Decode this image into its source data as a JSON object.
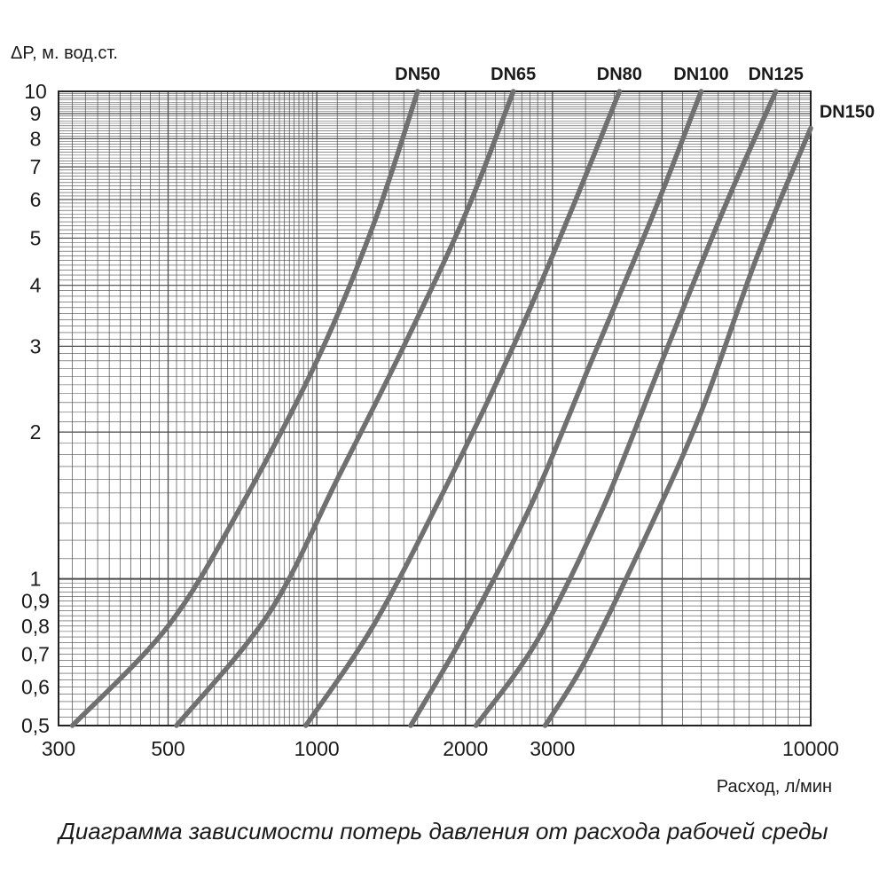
{
  "chart_data": {
    "type": "line",
    "title": "",
    "ylabel": "ΔP, м. вод.ст.",
    "xlabel": "Расход, л/мин",
    "x_scale": "log",
    "y_scale": "log",
    "xlim": [
      300,
      10000
    ],
    "ylim": [
      0.5,
      10
    ],
    "grid": true,
    "x_ticks": [
      {
        "value": 300,
        "label": "300"
      },
      {
        "value": 500,
        "label": "500"
      },
      {
        "value": 1000,
        "label": "1000"
      },
      {
        "value": 2000,
        "label": "2000"
      },
      {
        "value": 3000,
        "label": "3000"
      },
      {
        "value": 10000,
        "label": "10000"
      }
    ],
    "y_ticks": [
      {
        "value": 10,
        "label": "10"
      },
      {
        "value": 9,
        "label": "9"
      },
      {
        "value": 8,
        "label": "8"
      },
      {
        "value": 7,
        "label": "7"
      },
      {
        "value": 6,
        "label": "6"
      },
      {
        "value": 5,
        "label": "5"
      },
      {
        "value": 4,
        "label": "4"
      },
      {
        "value": 3,
        "label": "3"
      },
      {
        "value": 2,
        "label": "2"
      },
      {
        "value": 1,
        "label": "1"
      },
      {
        "value": 0.9,
        "label": "0,9"
      },
      {
        "value": 0.8,
        "label": "0,8"
      },
      {
        "value": 0.7,
        "label": "0,7"
      },
      {
        "value": 0.6,
        "label": "0,6"
      },
      {
        "value": 0.5,
        "label": "0,5"
      }
    ],
    "series": [
      {
        "name": "DN50",
        "points": [
          [
            320,
            0.5
          ],
          [
            500,
            0.8
          ],
          [
            700,
            1.4
          ],
          [
            1000,
            2.8
          ],
          [
            1300,
            5.3
          ],
          [
            1600,
            10
          ]
        ]
      },
      {
        "name": "DN65",
        "points": [
          [
            520,
            0.5
          ],
          [
            800,
            0.85
          ],
          [
            1100,
            1.6
          ],
          [
            1500,
            3.0
          ],
          [
            2000,
            5.6
          ],
          [
            2500,
            10
          ]
        ]
      },
      {
        "name": "DN80",
        "points": [
          [
            950,
            0.5
          ],
          [
            1300,
            0.8
          ],
          [
            1800,
            1.5
          ],
          [
            2500,
            3.0
          ],
          [
            3300,
            5.8
          ],
          [
            4100,
            10
          ]
        ]
      },
      {
        "name": "DN100",
        "points": [
          [
            1550,
            0.5
          ],
          [
            2000,
            0.78
          ],
          [
            2700,
            1.4
          ],
          [
            3600,
            2.8
          ],
          [
            4800,
            5.6
          ],
          [
            6000,
            10
          ]
        ]
      },
      {
        "name": "DN125",
        "points": [
          [
            2100,
            0.5
          ],
          [
            2800,
            0.75
          ],
          [
            3800,
            1.4
          ],
          [
            5000,
            2.8
          ],
          [
            6700,
            5.8
          ],
          [
            8500,
            10
          ]
        ]
      },
      {
        "name": "DN150",
        "points": [
          [
            2900,
            0.5
          ],
          [
            3500,
            0.68
          ],
          [
            4600,
            1.2
          ],
          [
            6000,
            2.2
          ],
          [
            7800,
            4.6
          ],
          [
            10000,
            8.4
          ]
        ]
      }
    ],
    "caption": "Диаграмма зависимости потерь давления от расхода рабочей среды"
  },
  "colors": {
    "curve": "#707070",
    "grid": "#4a4a4a",
    "text": "#1a1a1a"
  }
}
